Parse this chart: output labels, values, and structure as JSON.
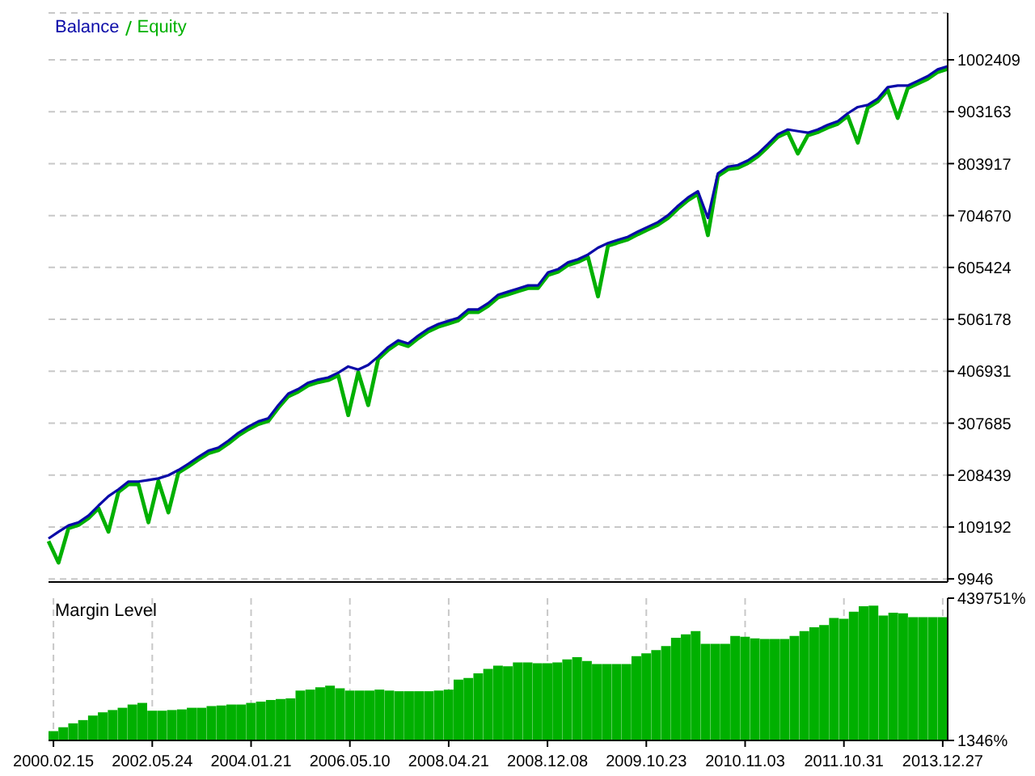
{
  "chart_data": [
    {
      "type": "line",
      "legend": "top left",
      "grid": "y",
      "tick_labels": "y",
      "categories": [
        null,
        null,
        null,
        null,
        null,
        null,
        null,
        null,
        null,
        null,
        null,
        null,
        null,
        null,
        null,
        null,
        null,
        null,
        null,
        null,
        null,
        null,
        null,
        null,
        null,
        null,
        null,
        null,
        null,
        null,
        null,
        null,
        null,
        null,
        null,
        null,
        null,
        null,
        null,
        null,
        null,
        null,
        null,
        null,
        null,
        null,
        null,
        null,
        null,
        null,
        null,
        null,
        null,
        null,
        null,
        null,
        null,
        null,
        null,
        null,
        null,
        null,
        null,
        null,
        null,
        null,
        null,
        null,
        null,
        null,
        null,
        null,
        null,
        null,
        null,
        null,
        null,
        null,
        null,
        null,
        null,
        null,
        null,
        null,
        null,
        null,
        null,
        null,
        null,
        null,
        null
      ],
      "ylim": [
        4000,
        1092000
      ],
      "yticks": [
        9946,
        109192,
        208439,
        307685,
        406931,
        506178,
        605424,
        704670,
        803917,
        903163,
        1002409
      ],
      "series": [
        {
          "name": "Equity",
          "color": "#00b000",
          "values": [
            82000,
            41000,
            107000,
            113000,
            126000,
            145000,
            100000,
            176000,
            191000,
            191000,
            118000,
            197000,
            137000,
            213000,
            225000,
            238000,
            250000,
            256000,
            269000,
            284000,
            296000,
            306000,
            312000,
            337000,
            359000,
            368000,
            380000,
            386000,
            390000,
            399000,
            323000,
            405000,
            342000,
            430000,
            448000,
            461000,
            455000,
            470000,
            483000,
            492000,
            498000,
            504000,
            520000,
            520000,
            532000,
            548000,
            554000,
            560000,
            566000,
            566000,
            591000,
            597000,
            610000,
            616000,
            625000,
            550000,
            647000,
            653000,
            659000,
            669000,
            678000,
            687000,
            700000,
            718000,
            734000,
            746000,
            667000,
            780000,
            793000,
            796000,
            805000,
            818000,
            836000,
            855000,
            864000,
            823000,
            858000,
            864000,
            873000,
            880000,
            895000,
            844000,
            911000,
            923000,
            945000,
            891000,
            948000,
            957000,
            966000,
            979000,
            985000
          ]
        },
        {
          "name": "Balance",
          "color": "#0a0aa8",
          "values": [
            87000,
            100000,
            112000,
            118000,
            131000,
            150000,
            168000,
            181000,
            196000,
            196000,
            199000,
            202000,
            208000,
            218000,
            230000,
            243000,
            255000,
            261000,
            274000,
            289000,
            301000,
            311000,
            317000,
            342000,
            364000,
            373000,
            385000,
            391000,
            395000,
            404000,
            416000,
            410000,
            419000,
            435000,
            453000,
            466000,
            460000,
            475000,
            488000,
            497000,
            503000,
            509000,
            525000,
            525000,
            537000,
            553000,
            559000,
            565000,
            571000,
            571000,
            596000,
            602000,
            615000,
            621000,
            630000,
            643000,
            652000,
            658000,
            664000,
            674000,
            683000,
            692000,
            705000,
            723000,
            739000,
            751000,
            700000,
            785000,
            798000,
            801000,
            810000,
            823000,
            841000,
            860000,
            869000,
            866000,
            863000,
            869000,
            878000,
            885000,
            900000,
            912000,
            916000,
            928000,
            950000,
            953000,
            953000,
            962000,
            971000,
            984000,
            990000
          ]
        }
      ]
    },
    {
      "type": "bar",
      "title": "Margin Level",
      "grid": "x",
      "color": "#00b000",
      "categories": [
        "2000.02.15",
        null,
        null,
        null,
        null,
        null,
        null,
        null,
        null,
        null,
        "2002.05.24",
        null,
        null,
        null,
        null,
        null,
        null,
        null,
        null,
        null,
        "2004.01.21",
        null,
        null,
        null,
        null,
        null,
        null,
        null,
        null,
        null,
        "2006.05.10",
        null,
        null,
        null,
        null,
        null,
        null,
        null,
        null,
        null,
        "2008.04.21",
        null,
        null,
        null,
        null,
        null,
        null,
        null,
        null,
        null,
        "2008.12.08",
        null,
        null,
        null,
        null,
        null,
        null,
        null,
        null,
        null,
        "2009.10.23",
        null,
        null,
        null,
        null,
        null,
        null,
        null,
        null,
        null,
        "2010.11.03",
        null,
        null,
        null,
        null,
        null,
        null,
        null,
        null,
        null,
        "2011.10.31",
        null,
        null,
        null,
        null,
        null,
        null,
        null,
        null,
        null,
        "2013.12.27"
      ],
      "ylim": [
        1346,
        439751
      ],
      "yticks": [
        {
          "value": 1346,
          "label": "1346%"
        },
        {
          "value": 439751,
          "label": "439751%"
        }
      ],
      "values": [
        30000,
        42000,
        54000,
        64000,
        78000,
        88000,
        95000,
        102000,
        112000,
        117000,
        93000,
        93000,
        95000,
        97000,
        102000,
        102000,
        107000,
        109000,
        112000,
        112000,
        117000,
        121000,
        126000,
        129000,
        131000,
        155000,
        158000,
        165000,
        170000,
        162000,
        155000,
        155000,
        155000,
        158000,
        155000,
        153000,
        153000,
        153000,
        153000,
        155000,
        158000,
        189000,
        194000,
        208000,
        222000,
        232000,
        230000,
        242000,
        242000,
        239000,
        239000,
        242000,
        251000,
        258000,
        246000,
        237000,
        237000,
        237000,
        237000,
        261000,
        270000,
        280000,
        292000,
        318000,
        328000,
        338000,
        299000,
        299000,
        299000,
        323000,
        321000,
        316000,
        314000,
        314000,
        314000,
        323000,
        338000,
        350000,
        357000,
        379000,
        376000,
        398000,
        415000,
        417000,
        386000,
        395000,
        393000,
        381000,
        381000,
        381000,
        381000
      ]
    }
  ]
}
